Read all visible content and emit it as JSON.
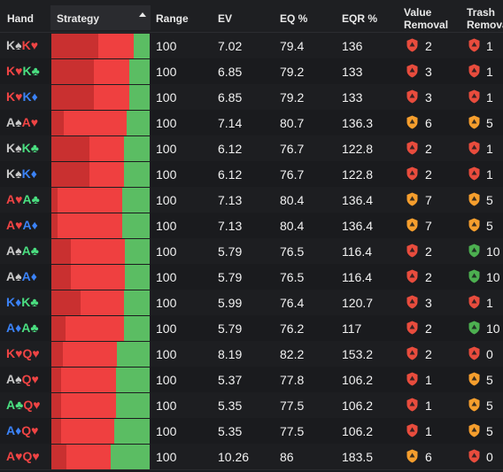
{
  "columns": {
    "hand": "Hand",
    "strategy": "Strategy",
    "range": "Range",
    "ev": "EV",
    "eq": "EQ %",
    "eqr": "EQR %",
    "value_removal_1": "Value",
    "value_removal_2": "Removal",
    "trash_removal_1": "Trash",
    "trash_removal_2": "Remova"
  },
  "colors": {
    "spade": "#c9c9c9",
    "heart": "#ef4444",
    "club": "#4ade80",
    "diamond": "#3b82f6",
    "bar_dark_red": "#c93030",
    "bar_red": "#ef4040",
    "bar_green": "#5bbd63",
    "shield_red": "#e84c3d",
    "shield_orange": "#f59e2d",
    "shield_green": "#4caf50"
  },
  "rows": [
    {
      "hand": [
        {
          "r": "K",
          "s": "spade"
        },
        {
          "r": "K",
          "s": "heart"
        }
      ],
      "strategy": [
        0.48,
        0.36,
        0.16
      ],
      "range": "100",
      "ev": "7.02",
      "eq": "79.4",
      "eqr": "136",
      "value": "2",
      "value_icon": "red",
      "trash": "1",
      "trash_icon": "red"
    },
    {
      "hand": [
        {
          "r": "K",
          "s": "heart"
        },
        {
          "r": "K",
          "s": "club"
        }
      ],
      "strategy": [
        0.43,
        0.36,
        0.21
      ],
      "range": "100",
      "ev": "6.85",
      "eq": "79.2",
      "eqr": "133",
      "value": "3",
      "value_icon": "red",
      "trash": "1",
      "trash_icon": "red"
    },
    {
      "hand": [
        {
          "r": "K",
          "s": "heart"
        },
        {
          "r": "K",
          "s": "diamond"
        }
      ],
      "strategy": [
        0.43,
        0.36,
        0.21
      ],
      "range": "100",
      "ev": "6.85",
      "eq": "79.2",
      "eqr": "133",
      "value": "3",
      "value_icon": "red",
      "trash": "1",
      "trash_icon": "red"
    },
    {
      "hand": [
        {
          "r": "A",
          "s": "spade"
        },
        {
          "r": "A",
          "s": "heart"
        }
      ],
      "strategy": [
        0.13,
        0.64,
        0.23
      ],
      "range": "100",
      "ev": "7.14",
      "eq": "80.7",
      "eqr": "136.3",
      "value": "6",
      "value_icon": "orange",
      "trash": "5",
      "trash_icon": "orange"
    },
    {
      "hand": [
        {
          "r": "K",
          "s": "spade"
        },
        {
          "r": "K",
          "s": "club"
        }
      ],
      "strategy": [
        0.39,
        0.35,
        0.26
      ],
      "range": "100",
      "ev": "6.12",
      "eq": "76.7",
      "eqr": "122.8",
      "value": "2",
      "value_icon": "red",
      "trash": "1",
      "trash_icon": "red"
    },
    {
      "hand": [
        {
          "r": "K",
          "s": "spade"
        },
        {
          "r": "K",
          "s": "diamond"
        }
      ],
      "strategy": [
        0.39,
        0.35,
        0.26
      ],
      "range": "100",
      "ev": "6.12",
      "eq": "76.7",
      "eqr": "122.8",
      "value": "2",
      "value_icon": "red",
      "trash": "1",
      "trash_icon": "red"
    },
    {
      "hand": [
        {
          "r": "A",
          "s": "heart"
        },
        {
          "r": "A",
          "s": "club"
        }
      ],
      "strategy": [
        0.06,
        0.66,
        0.28
      ],
      "range": "100",
      "ev": "7.13",
      "eq": "80.4",
      "eqr": "136.4",
      "value": "7",
      "value_icon": "orange",
      "trash": "5",
      "trash_icon": "orange"
    },
    {
      "hand": [
        {
          "r": "A",
          "s": "heart"
        },
        {
          "r": "A",
          "s": "diamond"
        }
      ],
      "strategy": [
        0.06,
        0.66,
        0.28
      ],
      "range": "100",
      "ev": "7.13",
      "eq": "80.4",
      "eqr": "136.4",
      "value": "7",
      "value_icon": "orange",
      "trash": "5",
      "trash_icon": "orange"
    },
    {
      "hand": [
        {
          "r": "A",
          "s": "spade"
        },
        {
          "r": "A",
          "s": "club"
        }
      ],
      "strategy": [
        0.2,
        0.55,
        0.25
      ],
      "range": "100",
      "ev": "5.79",
      "eq": "76.5",
      "eqr": "116.4",
      "value": "2",
      "value_icon": "red",
      "trash": "10",
      "trash_icon": "green"
    },
    {
      "hand": [
        {
          "r": "A",
          "s": "spade"
        },
        {
          "r": "A",
          "s": "diamond"
        }
      ],
      "strategy": [
        0.2,
        0.55,
        0.25
      ],
      "range": "100",
      "ev": "5.79",
      "eq": "76.5",
      "eqr": "116.4",
      "value": "2",
      "value_icon": "red",
      "trash": "10",
      "trash_icon": "green"
    },
    {
      "hand": [
        {
          "r": "K",
          "s": "diamond"
        },
        {
          "r": "K",
          "s": "club"
        }
      ],
      "strategy": [
        0.3,
        0.44,
        0.26
      ],
      "range": "100",
      "ev": "5.99",
      "eq": "76.4",
      "eqr": "120.7",
      "value": "3",
      "value_icon": "red",
      "trash": "1",
      "trash_icon": "red"
    },
    {
      "hand": [
        {
          "r": "A",
          "s": "diamond"
        },
        {
          "r": "A",
          "s": "club"
        }
      ],
      "strategy": [
        0.14,
        0.6,
        0.26
      ],
      "range": "100",
      "ev": "5.79",
      "eq": "76.2",
      "eqr": "117",
      "value": "2",
      "value_icon": "red",
      "trash": "10",
      "trash_icon": "green"
    },
    {
      "hand": [
        {
          "r": "K",
          "s": "heart"
        },
        {
          "r": "Q",
          "s": "heart"
        }
      ],
      "strategy": [
        0.12,
        0.55,
        0.33
      ],
      "range": "100",
      "ev": "8.19",
      "eq": "82.2",
      "eqr": "153.2",
      "value": "2",
      "value_icon": "red",
      "trash": "0",
      "trash_icon": "red"
    },
    {
      "hand": [
        {
          "r": "A",
          "s": "spade"
        },
        {
          "r": "Q",
          "s": "heart"
        }
      ],
      "strategy": [
        0.1,
        0.56,
        0.34
      ],
      "range": "100",
      "ev": "5.37",
      "eq": "77.8",
      "eqr": "106.2",
      "value": "1",
      "value_icon": "red",
      "trash": "5",
      "trash_icon": "orange"
    },
    {
      "hand": [
        {
          "r": "A",
          "s": "club"
        },
        {
          "r": "Q",
          "s": "heart"
        }
      ],
      "strategy": [
        0.1,
        0.56,
        0.34
      ],
      "range": "100",
      "ev": "5.35",
      "eq": "77.5",
      "eqr": "106.2",
      "value": "1",
      "value_icon": "red",
      "trash": "5",
      "trash_icon": "orange"
    },
    {
      "hand": [
        {
          "r": "A",
          "s": "diamond"
        },
        {
          "r": "Q",
          "s": "heart"
        }
      ],
      "strategy": [
        0.1,
        0.54,
        0.36
      ],
      "range": "100",
      "ev": "5.35",
      "eq": "77.5",
      "eqr": "106.2",
      "value": "1",
      "value_icon": "red",
      "trash": "5",
      "trash_icon": "orange"
    },
    {
      "hand": [
        {
          "r": "A",
          "s": "heart"
        },
        {
          "r": "Q",
          "s": "heart"
        }
      ],
      "strategy": [
        0.15,
        0.45,
        0.4
      ],
      "range": "100",
      "ev": "10.26",
      "eq": "86",
      "eqr": "183.5",
      "value": "6",
      "value_icon": "orange",
      "trash": "0",
      "trash_icon": "red"
    }
  ]
}
